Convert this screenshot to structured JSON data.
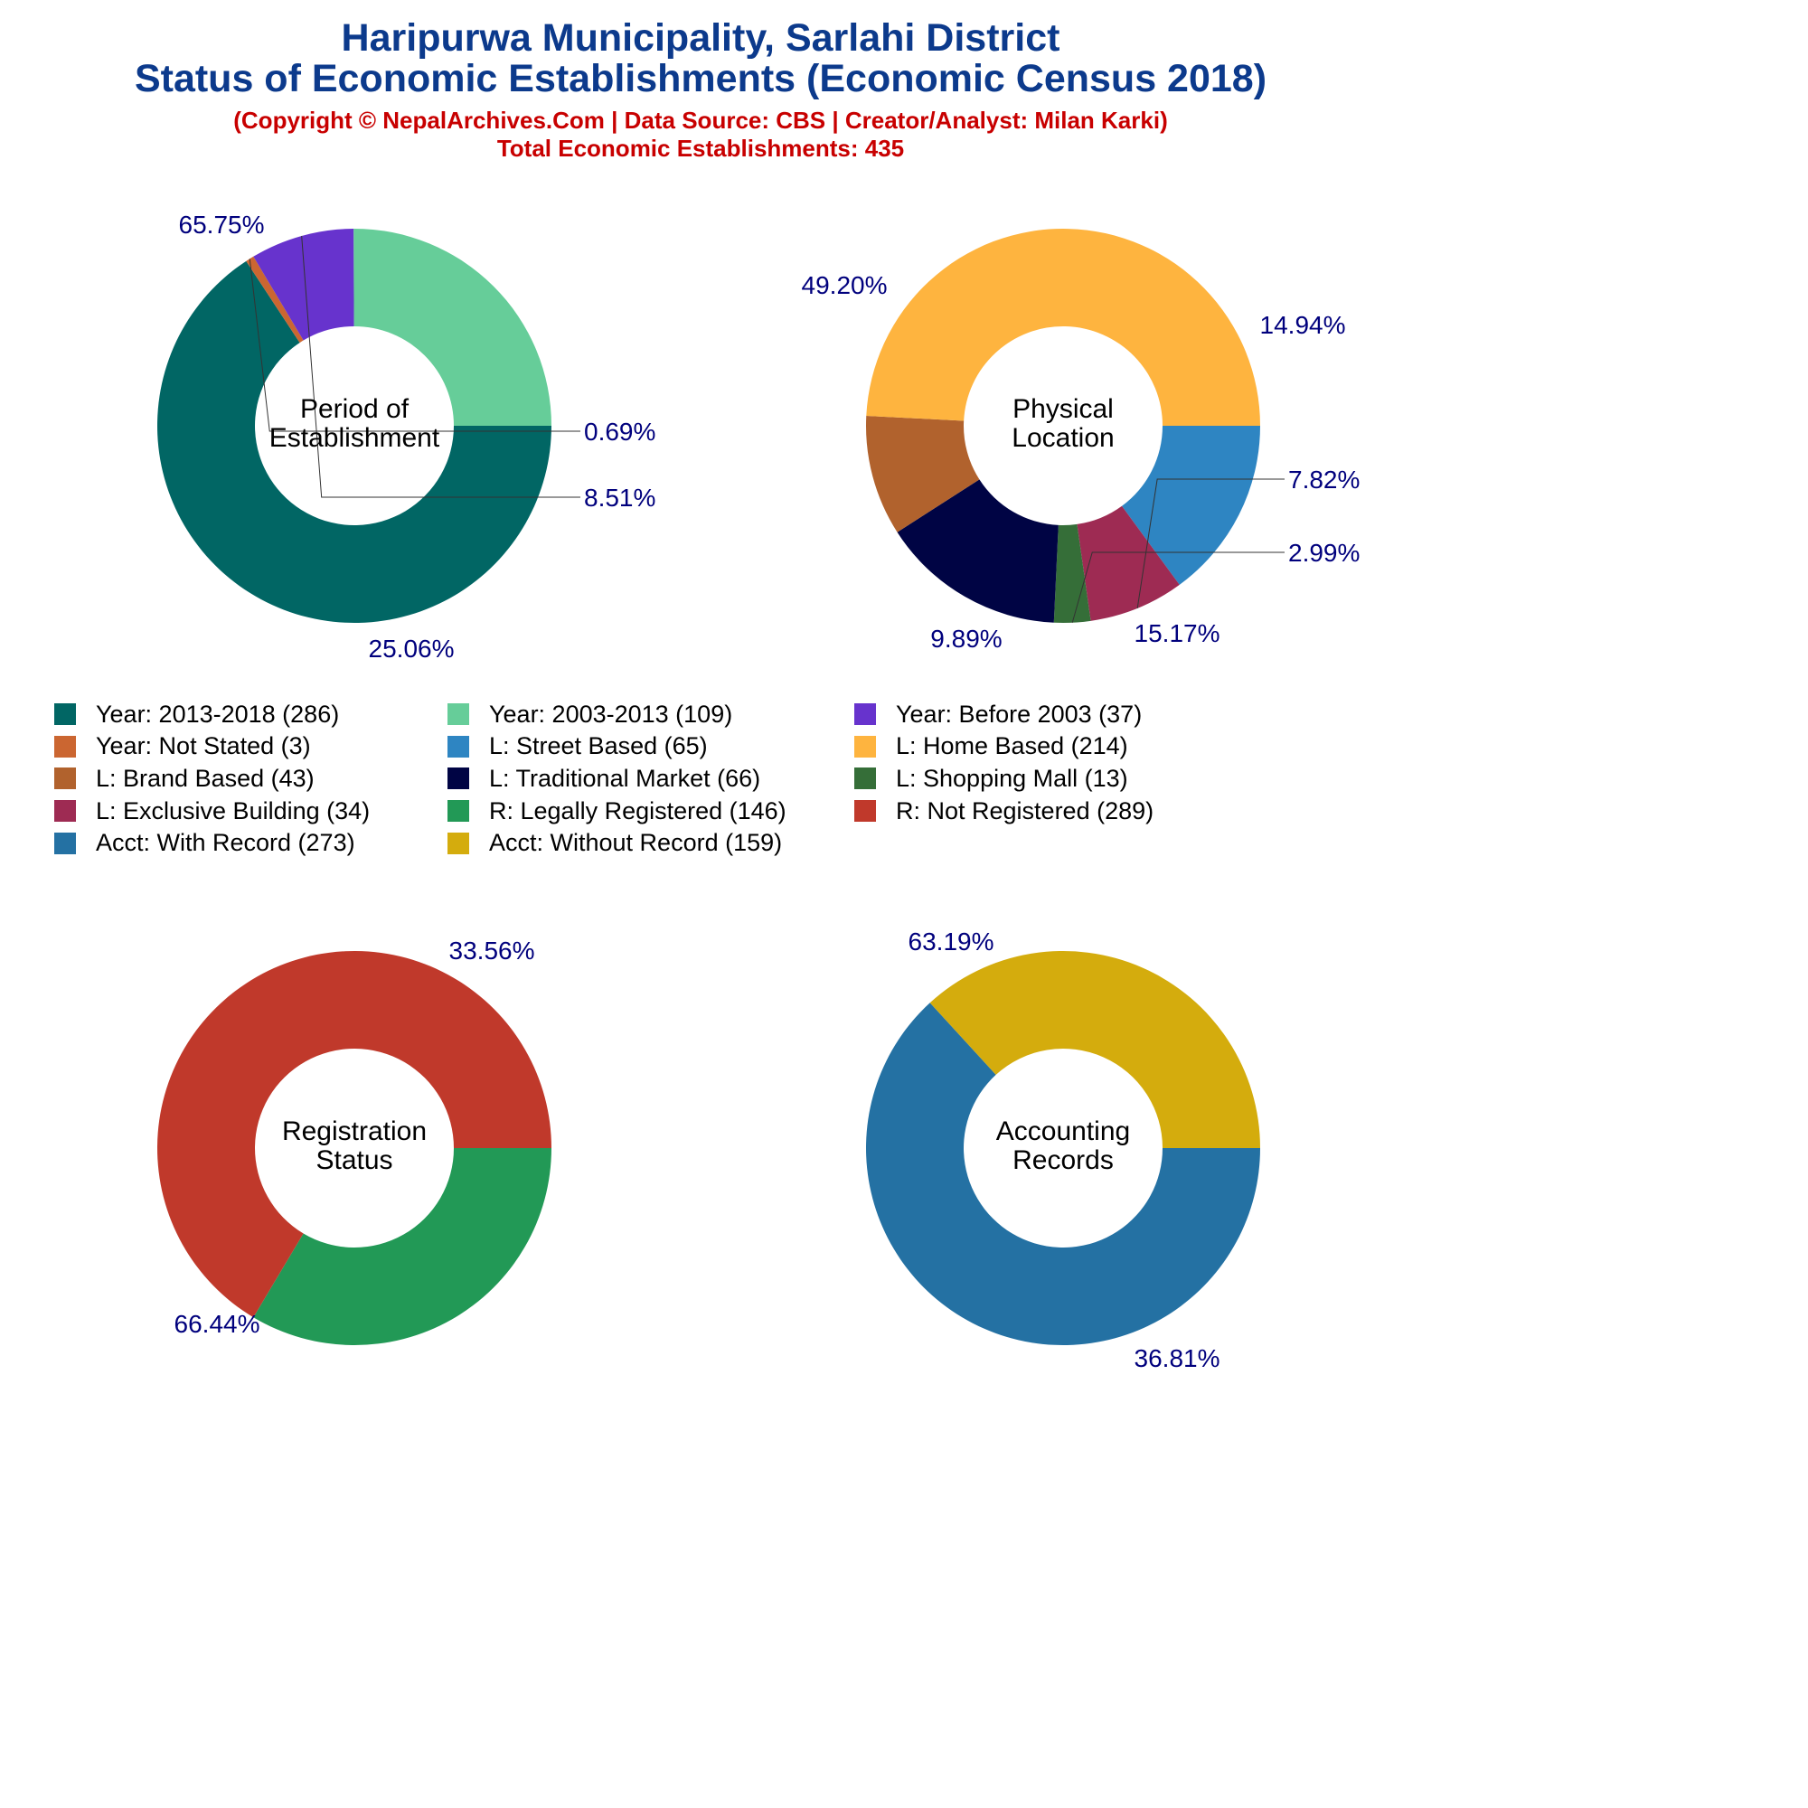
{
  "header": {
    "title_line1": "Haripurwa Municipality, Sarlahi District",
    "title_line2": "Status of Economic Establishments (Economic Census 2018)",
    "subtitle_line1": "(Copyright © NepalArchives.Com | Data Source: CBS | Creator/Analyst: Milan Karki)",
    "subtitle_line2": "Total Economic Establishments: 435"
  },
  "legend": [
    {
      "label": "Year: 2013-2018 (286)",
      "color": "#016664"
    },
    {
      "label": "Year: 2003-2013 (109)",
      "color": "#66cd99"
    },
    {
      "label": "Year: Before 2003 (37)",
      "color": "#6733cd"
    },
    {
      "label": "Year: Not Stated (3)",
      "color": "#cb6631"
    },
    {
      "label": "L: Street Based (65)",
      "color": "#2e85c2"
    },
    {
      "label": "L: Home Based (214)",
      "color": "#feb43f"
    },
    {
      "label": "L: Brand Based (43)",
      "color": "#b1622d"
    },
    {
      "label": "L: Traditional Market (66)",
      "color": "#000444"
    },
    {
      "label": "L: Shopping Mall (13)",
      "color": "#356e38"
    },
    {
      "label": "L: Exclusive Building (34)",
      "color": "#9e2b53"
    },
    {
      "label": "R: Legally Registered (146)",
      "color": "#229956"
    },
    {
      "label": "R: Not Registered (289)",
      "color": "#c0392b"
    },
    {
      "label": "Acct: With Record (273)",
      "color": "#2471a3"
    },
    {
      "label": "Acct: Without Record (159)",
      "color": "#d4ac0d"
    }
  ],
  "chart_data": [
    {
      "type": "pie",
      "center_label": [
        "Period of",
        "Establishment"
      ],
      "slices": [
        {
          "category": "Year: 2013-2018",
          "value": 286,
          "percent_label": "65.75%",
          "color": "#016664"
        },
        {
          "category": "Year: Not Stated",
          "value": 3,
          "percent_label": "0.69%",
          "color": "#cb6631"
        },
        {
          "category": "Year: Before 2003",
          "value": 37,
          "percent_label": "8.51%",
          "color": "#6733cd"
        },
        {
          "category": "Year: 2003-2013",
          "value": 109,
          "percent_label": "25.06%",
          "color": "#66cd99"
        }
      ]
    },
    {
      "type": "pie",
      "center_label": [
        "Physical",
        "Location"
      ],
      "slices": [
        {
          "category": "L: Street Based",
          "value": 65,
          "percent_label": "14.94%",
          "color": "#2e85c2"
        },
        {
          "category": "L: Exclusive Building",
          "value": 34,
          "percent_label": "7.82%",
          "color": "#9e2b53"
        },
        {
          "category": "L: Shopping Mall",
          "value": 13,
          "percent_label": "2.99%",
          "color": "#356e38"
        },
        {
          "category": "L: Traditional Market",
          "value": 66,
          "percent_label": "15.17%",
          "color": "#000444"
        },
        {
          "category": "L: Brand Based",
          "value": 43,
          "percent_label": "9.89%",
          "color": "#b1622d"
        },
        {
          "category": "L: Home Based",
          "value": 214,
          "percent_label": "49.20%",
          "color": "#feb43f"
        }
      ]
    },
    {
      "type": "pie",
      "center_label": [
        "Registration",
        "Status"
      ],
      "slices": [
        {
          "category": "R: Legally Registered",
          "value": 146,
          "percent_label": "33.56%",
          "color": "#229956"
        },
        {
          "category": "R: Not Registered",
          "value": 289,
          "percent_label": "66.44%",
          "color": "#c0392b"
        }
      ]
    },
    {
      "type": "pie",
      "center_label": [
        "Accounting",
        "Records"
      ],
      "slices": [
        {
          "category": "Acct: With Record",
          "value": 273,
          "percent_label": "63.19%",
          "color": "#2471a3"
        },
        {
          "category": "Acct: Without Record",
          "value": 159,
          "percent_label": "36.81%",
          "color": "#d4ac0d"
        }
      ]
    }
  ]
}
